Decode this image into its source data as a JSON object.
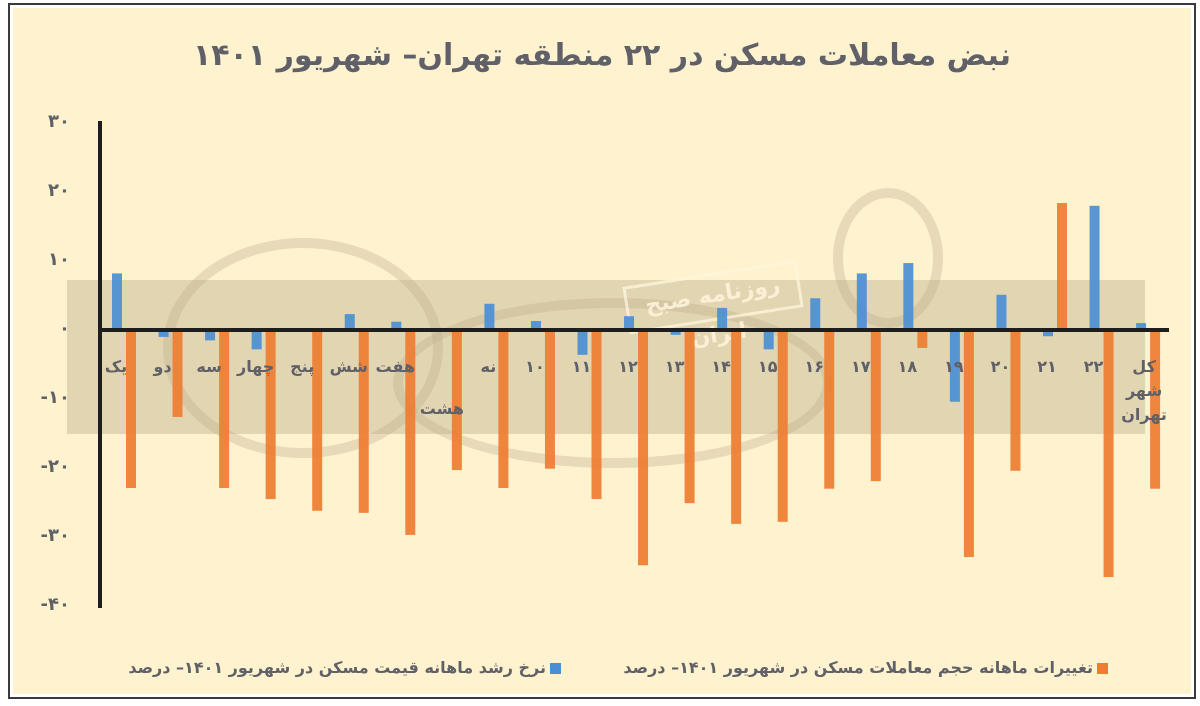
{
  "title": "نبض معاملات مسکن در ۲۲ منطقه تهران– شهریور ۱۴۰۱",
  "watermark": "روزنامه صبح ایران",
  "colors": {
    "background": "#fff2cf",
    "price_series": "#4a8fd4",
    "volume_series": "#ee7d31",
    "axis": "#1e1e1e",
    "text": "#5f6068",
    "band": "#d9ccab"
  },
  "y_ticks": [
    {
      "value": 30,
      "label": "۳۰"
    },
    {
      "value": 20,
      "label": "۲۰"
    },
    {
      "value": 10,
      "label": "۱۰"
    },
    {
      "value": 0,
      "label": "۰"
    },
    {
      "value": -10,
      "label": "-۱۰"
    },
    {
      "value": -20,
      "label": "-۲۰"
    },
    {
      "value": -30,
      "label": "-۳۰"
    },
    {
      "value": -40,
      "label": "-۴۰"
    }
  ],
  "legend": {
    "volume": "تغییرات ماهانه حجم معاملات مسکن در شهریور ۱۴۰۱– درصد",
    "price": "نرخ رشد ماهانه قیمت مسکن در شهریور ۱۴۰۱– درصد"
  },
  "chart_data": {
    "type": "bar",
    "title": "نبض معاملات مسکن در ۲۲ منطقه تهران– شهریور ۱۴۰۱",
    "xlabel": "",
    "ylabel": "",
    "ylim": [
      -40,
      30
    ],
    "grid": false,
    "legend_position": "bottom",
    "categories": [
      "یک",
      "دو",
      "سه",
      "چهار",
      "پنج",
      "شش",
      "هفت",
      "هشت",
      "نه",
      "۱۰",
      "۱۱",
      "۱۲",
      "۱۳",
      "۱۴",
      "۱۵",
      "۱۶",
      "۱۷",
      "۱۸",
      "۱۹",
      "۲۰",
      "۲۱",
      "۲۲",
      "کل شهر تهران"
    ],
    "series": [
      {
        "name": "نرخ رشد ماهانه قیمت مسکن در شهریور ۱۴۰۱– درصد",
        "color": "#4a8fd4",
        "values": [
          8.2,
          -1.0,
          -1.5,
          -2.8,
          0,
          2.3,
          1.2,
          0,
          3.8,
          1.3,
          -3.6,
          2.0,
          -0.7,
          3.2,
          -2.8,
          4.6,
          8.2,
          9.7,
          -10.4,
          5.1,
          -0.9,
          18.0,
          1.0
        ]
      },
      {
        "name": "تغییرات ماهانه حجم معاملات مسکن در شهریور ۱۴۰۱– درصد",
        "color": "#ee7d31",
        "values": [
          -22.9,
          -12.6,
          -22.9,
          -24.5,
          -26.2,
          -26.5,
          -29.7,
          -20.3,
          -22.9,
          -20.1,
          -24.5,
          -34.1,
          -25.1,
          -28.1,
          -27.8,
          -23.0,
          -21.9,
          -2.6,
          -32.9,
          -20.4,
          18.4,
          -35.8,
          -23.0
        ]
      }
    ]
  }
}
